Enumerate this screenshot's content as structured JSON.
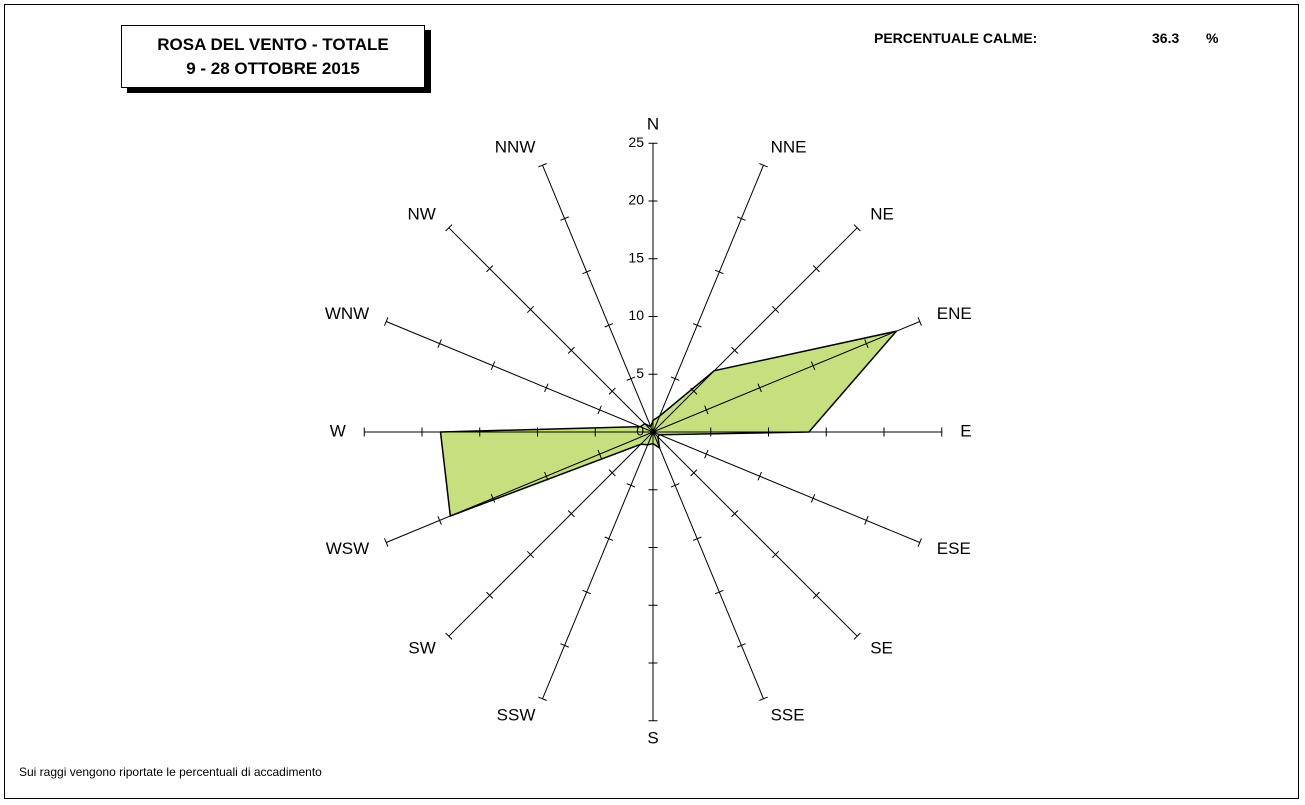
{
  "title": {
    "line1": "ROSA DEL VENTO - TOTALE",
    "line2": "9 - 28 OTTOBRE 2015"
  },
  "calm": {
    "label": "PERCENTUALE CALME:",
    "value": "36.3",
    "unit": "%"
  },
  "note": "Sui raggi vengono riportate le percentuali di accadimento",
  "colors": {
    "fill": "#c6e07f",
    "stroke": "#000000"
  },
  "chart_data": {
    "type": "radar",
    "directions": [
      "N",
      "NNE",
      "NE",
      "ENE",
      "E",
      "ESE",
      "SE",
      "SSE",
      "S",
      "SSW",
      "SW",
      "WSW",
      "W",
      "WNW",
      "NW",
      "NNW"
    ],
    "values": [
      1.0,
      1.5,
      7.5,
      22.8,
      13.5,
      0.6,
      0.6,
      1.5,
      1.0,
      1.2,
      1.5,
      19.0,
      18.4,
      1.2,
      1.0,
      0.5
    ],
    "radial_ticks": [
      "0",
      "5",
      "10",
      "15",
      "20",
      "25"
    ],
    "rlim": [
      0,
      25
    ],
    "grid": true
  }
}
